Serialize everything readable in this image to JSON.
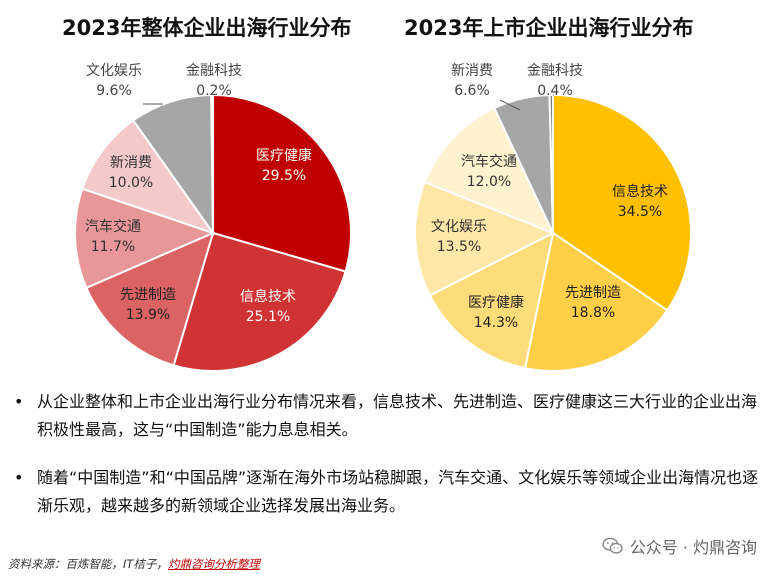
{
  "chart_data": [
    {
      "type": "pie",
      "title": "2023年整体企业出海行业分布",
      "slices": [
        {
          "label": "医疗健康",
          "value": 29.5,
          "display": "29.5%",
          "color": "#C00000"
        },
        {
          "label": "信息技术",
          "value": 25.1,
          "display": "25.1%",
          "color": "#CF3333"
        },
        {
          "label": "先进制造",
          "value": 13.9,
          "display": "13.9%",
          "color": "#DB6363"
        },
        {
          "label": "汽车交通",
          "value": 11.7,
          "display": "11.7%",
          "color": "#E79797"
        },
        {
          "label": "新消费",
          "value": 10.0,
          "display": "10.0%",
          "color": "#F3C9C9"
        },
        {
          "label": "文化娱乐",
          "value": 9.6,
          "display": "9.6%",
          "color": "#A6A6A6"
        },
        {
          "label": "金融科技",
          "value": 0.2,
          "display": "0.2%",
          "color": "#7F7F7F"
        }
      ]
    },
    {
      "type": "pie",
      "title": "2023年上市企业出海行业分布",
      "slices": [
        {
          "label": "信息技术",
          "value": 34.5,
          "display": "34.5%",
          "color": "#FFC000"
        },
        {
          "label": "先进制造",
          "value": 18.8,
          "display": "18.8%",
          "color": "#FFCF47"
        },
        {
          "label": "医疗健康",
          "value": 14.3,
          "display": "14.3%",
          "color": "#FFDC7A"
        },
        {
          "label": "文化娱乐",
          "value": 13.5,
          "display": "13.5%",
          "color": "#FFE7A8"
        },
        {
          "label": "汽车交通",
          "value": 12.0,
          "display": "12.0%",
          "color": "#FFF2CF"
        },
        {
          "label": "新消费",
          "value": 6.6,
          "display": "6.6%",
          "color": "#A6A6A6"
        },
        {
          "label": "金融科技",
          "value": 0.4,
          "display": "0.4%",
          "color": "#7F7F7F"
        }
      ]
    }
  ],
  "bullets": [
    "从企业整体和上市企业出海行业分布情况来看，信息技术、先进制造、医疗健康这三大行业的企业出海积极性最高，这与“中国制造”能力息息相关。",
    "随着“中国制造”和“中国品牌”逐渐在海外市场站稳脚跟，汽车交通、文化娱乐等领域企业出海情况也逐渐乐观，越来越多的新领域企业选择发展出海业务。"
  ],
  "bullet_symbol": "•",
  "source": {
    "prefix": "资料来源：百炼智能，IT桔子，",
    "highlight": "灼鼎咨询分析整理"
  },
  "watermark": {
    "icon": "wechat-icon",
    "text": "公众号 · 灼鼎咨询"
  }
}
